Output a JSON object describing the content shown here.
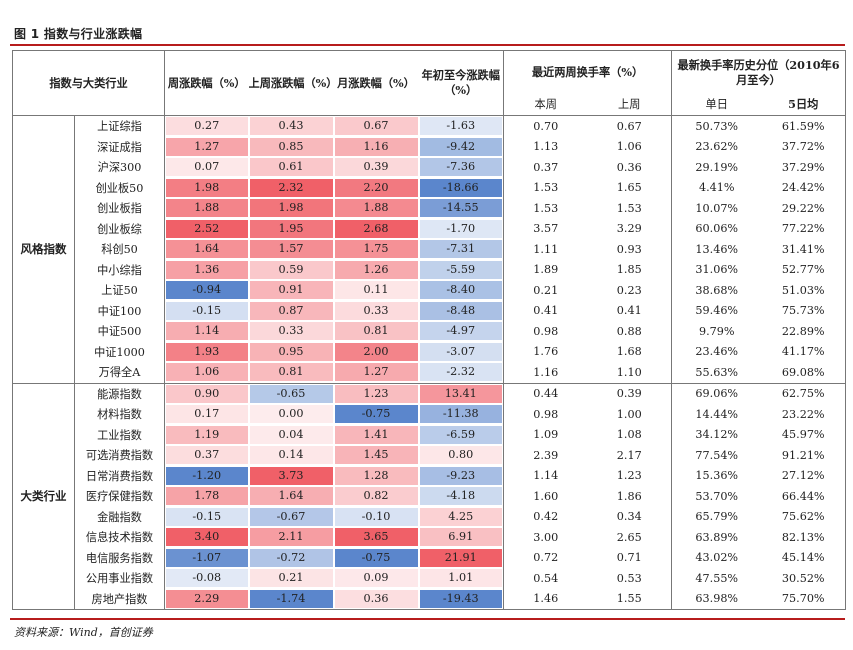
{
  "figure_title": "图 1 指数与行业涨跌幅",
  "source": "资料来源：Wind，首创证券",
  "header": {
    "col0": "指数与大类行业",
    "col_week": "周涨跌幅（%）",
    "col_lastweek": "上周涨跌幅（%）",
    "col_month": "月涨跌幅（%）",
    "col_ytd": "年初至今涨跌幅（%）",
    "col_turnover": "最近两周换手率（%）",
    "col_pct": "最新换手率历史分位（2010年6月至今）",
    "sub_thisweek": "本周",
    "sub_lastweek": "上周",
    "sub_single": "单日",
    "sub_5d": "5日均"
  },
  "groups": [
    {
      "name": "风格指数",
      "rows": [
        {
          "name": "上证综指",
          "week": "0.27",
          "lastweek": "0.43",
          "month": "0.67",
          "ytd": "-1.63",
          "tw": "0.70",
          "lw": "0.67",
          "single": "50.73%",
          "five": "61.59%"
        },
        {
          "name": "深证成指",
          "week": "1.27",
          "lastweek": "0.85",
          "month": "1.16",
          "ytd": "-9.42",
          "tw": "1.13",
          "lw": "1.06",
          "single": "23.62%",
          "five": "37.72%"
        },
        {
          "name": "沪深300",
          "week": "0.07",
          "lastweek": "0.61",
          "month": "0.39",
          "ytd": "-7.36",
          "tw": "0.37",
          "lw": "0.36",
          "single": "29.19%",
          "five": "37.29%"
        },
        {
          "name": "创业板50",
          "week": "1.98",
          "lastweek": "2.32",
          "month": "2.20",
          "ytd": "-18.66",
          "tw": "1.53",
          "lw": "1.65",
          "single": "4.41%",
          "five": "24.42%"
        },
        {
          "name": "创业板指",
          "week": "1.88",
          "lastweek": "1.98",
          "month": "1.88",
          "ytd": "-14.55",
          "tw": "1.53",
          "lw": "1.53",
          "single": "10.07%",
          "five": "29.22%"
        },
        {
          "name": "创业板综",
          "week": "2.52",
          "lastweek": "1.95",
          "month": "2.68",
          "ytd": "-1.70",
          "tw": "3.57",
          "lw": "3.29",
          "single": "60.06%",
          "five": "77.22%"
        },
        {
          "name": "科创50",
          "week": "1.64",
          "lastweek": "1.57",
          "month": "1.75",
          "ytd": "-7.31",
          "tw": "1.11",
          "lw": "0.93",
          "single": "13.46%",
          "five": "31.41%"
        },
        {
          "name": "中小综指",
          "week": "1.36",
          "lastweek": "0.59",
          "month": "1.26",
          "ytd": "-5.59",
          "tw": "1.89",
          "lw": "1.85",
          "single": "31.06%",
          "five": "52.77%"
        },
        {
          "name": "上证50",
          "week": "-0.94",
          "lastweek": "0.91",
          "month": "0.11",
          "ytd": "-8.40",
          "tw": "0.21",
          "lw": "0.23",
          "single": "38.68%",
          "five": "51.03%"
        },
        {
          "name": "中证100",
          "week": "-0.15",
          "lastweek": "0.87",
          "month": "0.33",
          "ytd": "-8.48",
          "tw": "0.41",
          "lw": "0.41",
          "single": "59.46%",
          "five": "75.73%"
        },
        {
          "name": "中证500",
          "week": "1.14",
          "lastweek": "0.33",
          "month": "0.81",
          "ytd": "-4.97",
          "tw": "0.98",
          "lw": "0.88",
          "single": "9.79%",
          "five": "22.89%"
        },
        {
          "name": "中证1000",
          "week": "1.93",
          "lastweek": "0.95",
          "month": "2.00",
          "ytd": "-3.07",
          "tw": "1.76",
          "lw": "1.68",
          "single": "23.46%",
          "five": "41.17%"
        },
        {
          "name": "万得全A",
          "week": "1.06",
          "lastweek": "0.81",
          "month": "1.27",
          "ytd": "-2.32",
          "tw": "1.16",
          "lw": "1.10",
          "single": "55.63%",
          "five": "69.08%"
        }
      ]
    },
    {
      "name": "大类行业",
      "rows": [
        {
          "name": "能源指数",
          "week": "0.90",
          "lastweek": "-0.65",
          "month": "1.23",
          "ytd": "13.41",
          "tw": "0.44",
          "lw": "0.39",
          "single": "69.06%",
          "five": "62.75%"
        },
        {
          "name": "材料指数",
          "week": "0.17",
          "lastweek": "0.00",
          "month": "-0.75",
          "ytd": "-11.38",
          "tw": "0.98",
          "lw": "1.00",
          "single": "14.44%",
          "five": "23.22%"
        },
        {
          "name": "工业指数",
          "week": "1.19",
          "lastweek": "0.04",
          "month": "1.41",
          "ytd": "-6.59",
          "tw": "1.09",
          "lw": "1.08",
          "single": "34.12%",
          "five": "45.97%"
        },
        {
          "name": "可选消费指数",
          "week": "0.37",
          "lastweek": "0.14",
          "month": "1.45",
          "ytd": "0.80",
          "tw": "2.39",
          "lw": "2.17",
          "single": "77.54%",
          "five": "91.21%"
        },
        {
          "name": "日常消费指数",
          "week": "-1.20",
          "lastweek": "3.73",
          "month": "1.28",
          "ytd": "-9.23",
          "tw": "1.14",
          "lw": "1.23",
          "single": "15.36%",
          "five": "27.12%"
        },
        {
          "name": "医疗保健指数",
          "week": "1.78",
          "lastweek": "1.64",
          "month": "0.82",
          "ytd": "-4.18",
          "tw": "1.60",
          "lw": "1.86",
          "single": "53.70%",
          "five": "66.44%"
        },
        {
          "name": "金融指数",
          "week": "-0.15",
          "lastweek": "-0.67",
          "month": "-0.10",
          "ytd": "4.25",
          "tw": "0.42",
          "lw": "0.34",
          "single": "65.79%",
          "five": "75.62%"
        },
        {
          "name": "信息技术指数",
          "week": "3.40",
          "lastweek": "2.11",
          "month": "3.65",
          "ytd": "6.91",
          "tw": "3.00",
          "lw": "2.65",
          "single": "63.89%",
          "five": "82.13%"
        },
        {
          "name": "电信服务指数",
          "week": "-1.07",
          "lastweek": "-0.72",
          "month": "-0.75",
          "ytd": "21.91",
          "tw": "0.72",
          "lw": "0.71",
          "single": "43.02%",
          "five": "45.14%"
        },
        {
          "name": "公用事业指数",
          "week": "-0.08",
          "lastweek": "0.21",
          "month": "0.09",
          "ytd": "1.01",
          "tw": "0.54",
          "lw": "0.53",
          "single": "47.55%",
          "five": "30.52%"
        },
        {
          "name": "房地产指数",
          "week": "2.29",
          "lastweek": "-1.74",
          "month": "0.36",
          "ytd": "-19.43",
          "tw": "1.46",
          "lw": "1.55",
          "single": "63.98%",
          "five": "75.70%"
        }
      ]
    }
  ],
  "colors": {
    "high": "#f06068",
    "low": "#5b86cc",
    "rule": "#b71c1c"
  }
}
